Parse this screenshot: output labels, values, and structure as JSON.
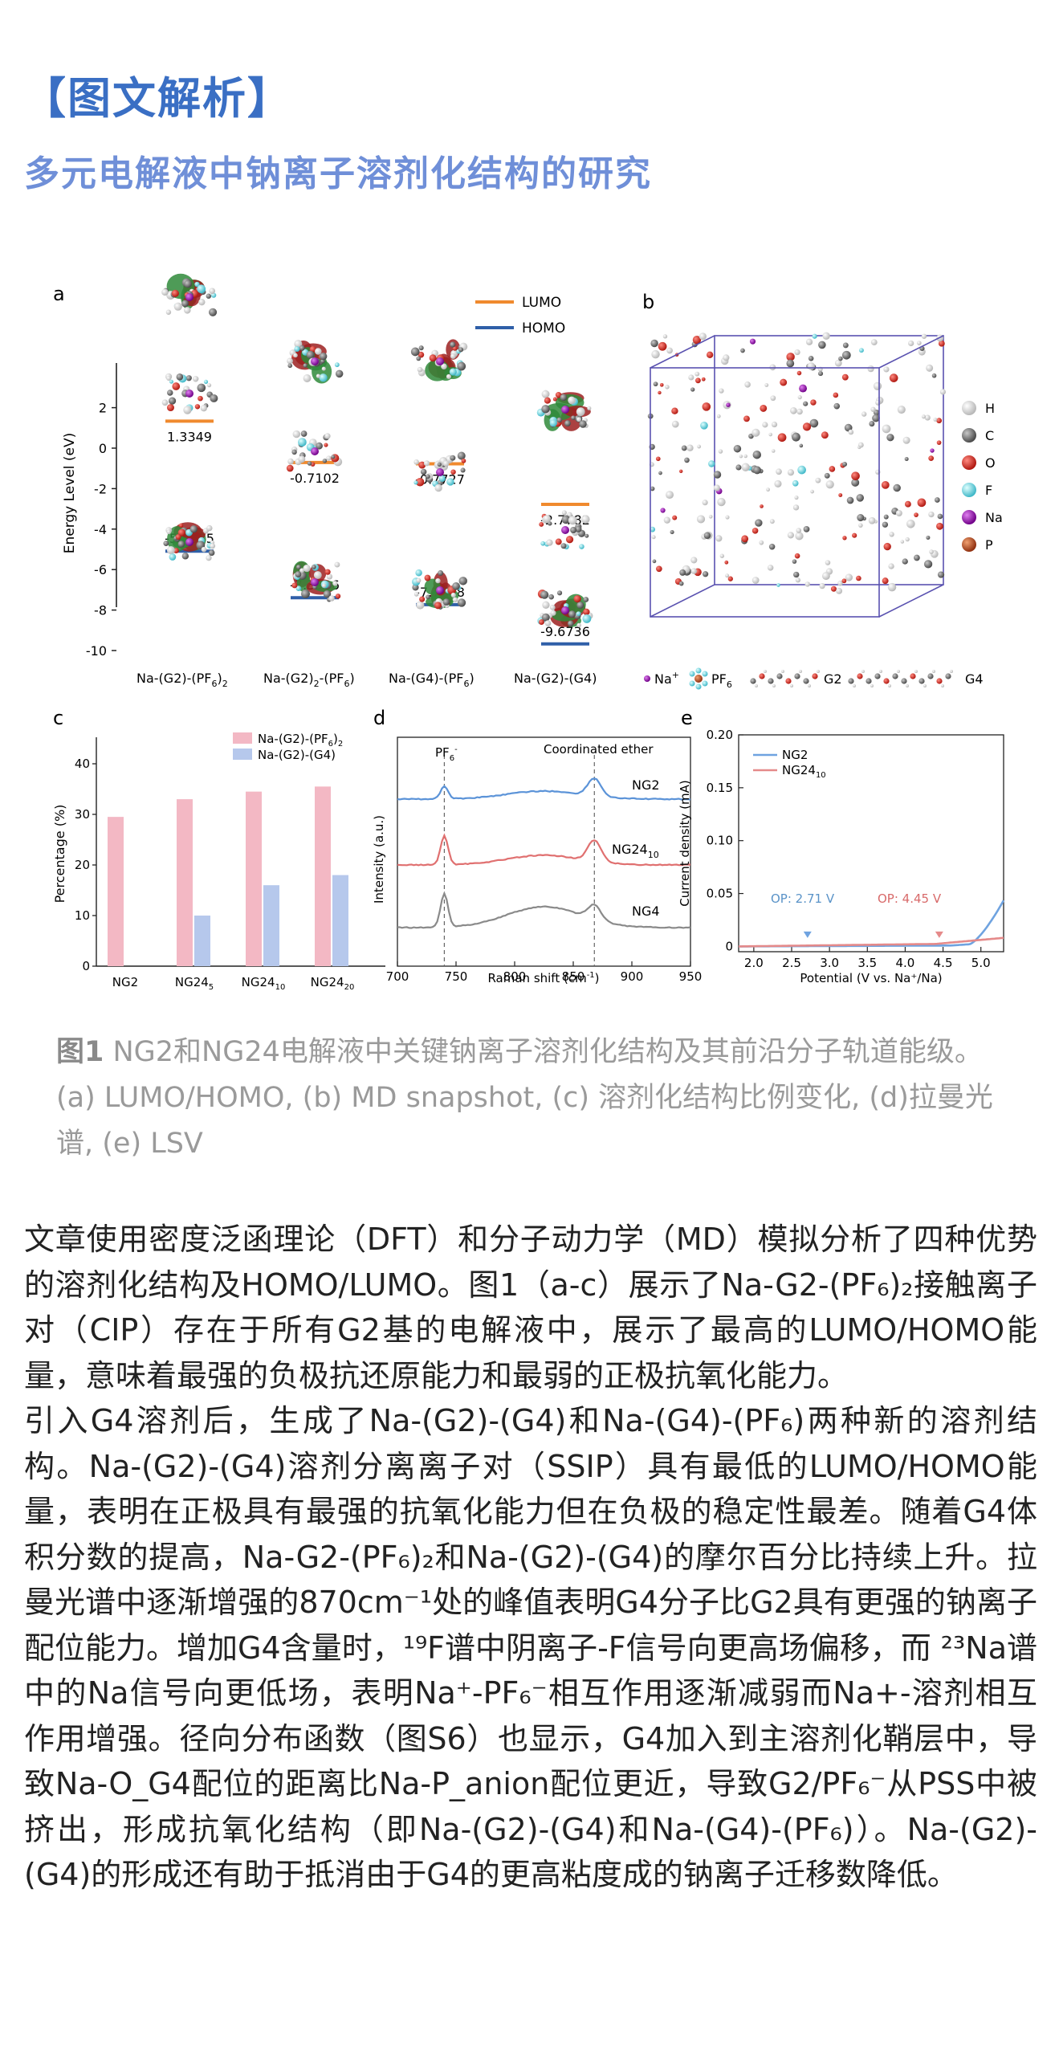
{
  "header": {
    "section_title": "【图文解析】",
    "article_title": "多元电解液中钠离子溶剂化结构的研究"
  },
  "figure": {
    "panel_a": {
      "letter": "a",
      "ylabel": "Energy Level (eV)",
      "yticks": [
        "2",
        "0",
        "-2",
        "-4",
        "-6",
        "-8",
        "-10"
      ],
      "legend": [
        {
          "label": "LUMO",
          "color": "#f08a2e"
        },
        {
          "label": "HOMO",
          "color": "#2f5fa8"
        }
      ],
      "structures": [
        {
          "name": "Na-(G2)-(PF6)2",
          "lumo": 1.3349,
          "homo": -5.0885,
          "lumo_label": "1.3349",
          "homo_label": "-5.0885"
        },
        {
          "name": "Na-(G2)2-(PF6)",
          "lumo": -0.7102,
          "homo": -7.3906,
          "lumo_label": "-0.7102",
          "homo_label": "-7.3906"
        },
        {
          "name": "Na-(G4)-(PF6)",
          "lumo": -0.7727,
          "homo": -7.7308,
          "lumo_label": "-0.7727",
          "homo_label": "-7.7308"
        },
        {
          "name": "Na-(G2)-(G4)",
          "lumo": -2.7782,
          "homo": -9.6736,
          "lumo_label": "-2.7782",
          "homo_label": "-9.6736"
        }
      ],
      "names": {
        "s1_main": "Na-(G2)-(PF",
        "s1_sub": "6",
        "s1_close": ")",
        "s1_sub2": "2",
        "s2_main": "Na-(G2)",
        "s2_sub": "2",
        "s2_rest": "-(PF",
        "s2_sub2": "6",
        "s2_close": ")",
        "s3_main": "Na-(G4)-(PF",
        "s3_sub": "6",
        "s3_close": ")",
        "s4_main": "Na-(G2)-(G4)"
      }
    },
    "panel_b": {
      "letter": "b",
      "atoms": [
        {
          "label": "H",
          "color": "#e8e8e8"
        },
        {
          "label": "C",
          "color": "#7a7a7a"
        },
        {
          "label": "O",
          "color": "#d42a20"
        },
        {
          "label": "F",
          "color": "#78d8e0"
        },
        {
          "label": "Na",
          "color": "#a020b0"
        },
        {
          "label": "P",
          "color": "#c8602a"
        }
      ],
      "molecule_legend": {
        "na": "Na",
        "na_sup": "+",
        "pf": "PF",
        "pf_sub": "6",
        "g2": "G2",
        "g4": "G4"
      }
    },
    "panel_c": {
      "letter": "c",
      "type": "bar",
      "ylabel": "Percentage (%)",
      "yticks": [
        "0",
        "10",
        "20",
        "30",
        "40"
      ],
      "ylim": [
        0,
        45
      ],
      "categories": [
        "NG2",
        "NG24",
        "NG24",
        "NG24"
      ],
      "category_subs": [
        "",
        "5",
        "10",
        "20"
      ],
      "series": [
        {
          "name": "Na-(G2)-(PF6)2",
          "label_main": "Na-(G2)-(PF",
          "label_sub": "6",
          "label_close": ")",
          "label_sub2": "2",
          "color": "#f3b8c4",
          "values": [
            29.5,
            33,
            34.5,
            35.5
          ]
        },
        {
          "name": "Na-(G2)-(G4)",
          "label_main": "Na-(G2)-(G4)",
          "color": "#b6c8ec",
          "values": [
            0,
            10,
            16,
            18
          ]
        }
      ]
    },
    "panel_d": {
      "letter": "d",
      "type": "line",
      "xlabel_main": "Raman shift (cm",
      "xlabel_sup": "-1",
      "xlabel_close": ")",
      "ylabel": "Intensity (a.u.)",
      "xticks": [
        "700",
        "750",
        "800",
        "850",
        "900",
        "950"
      ],
      "xlim": [
        700,
        950
      ],
      "annotations": {
        "pf": "PF",
        "pf_sub": "6",
        "pf_sup": "-",
        "coord": "Coordinated ether"
      },
      "peak_positions": [
        740,
        868
      ],
      "series": [
        {
          "name": "NG2",
          "name_sub": "",
          "color": "#5b93d8"
        },
        {
          "name": "NG24",
          "name_sub": "10",
          "color": "#e07070"
        },
        {
          "name": "NG4",
          "name_sub": "",
          "color": "#8a8a8a"
        }
      ]
    },
    "panel_e": {
      "letter": "e",
      "type": "line",
      "xlabel": "Potential (V vs. Na⁺/Na)",
      "ylabel": "Current density (mA)",
      "xticks": [
        "2.0",
        "2.5",
        "3.0",
        "3.5",
        "4.0",
        "4.5",
        "5.0"
      ],
      "yticks": [
        "0",
        "0.05",
        "0.10",
        "0.15",
        "0.20"
      ],
      "xlim": [
        1.8,
        5.3
      ],
      "ylim": [
        -0.005,
        0.2
      ],
      "series": [
        {
          "name": "NG2",
          "name_sub": "",
          "color": "#6fa3e0",
          "op_label": "OP: 2.71 V",
          "op_value": 2.71
        },
        {
          "name": "NG24",
          "name_sub": "10",
          "color": "#e58a8a",
          "op_label": "OP: 4.45 V",
          "op_value": 4.45
        }
      ]
    }
  },
  "caption": {
    "label": "图1",
    "text": " NG2和NG24电解液中关键钠离子溶剂化结构及其前沿分子轨道能级。(a) LUMO/HOMO, (b) MD snapshot, (c) 溶剂化结构比例变化, (d)拉曼光谱, (e) LSV"
  },
  "body": {
    "p1": "文章使用密度泛函理论（DFT）和分子动力学（MD）模拟分析了四种优势的溶剂化结构及HOMO/LUMO。图1（a-c）展示了Na-G2-(PF₆)₂接触离子对（CIP）存在于所有G2基的电解液中，展示了最高的LUMO/HOMO能量，意味着最强的负极抗还原能力和最弱的正极抗氧化能力。",
    "p2": "引入G4溶剂后，生成了Na-(G2)-(G4)和Na-(G4)-(PF₆)两种新的溶剂结构。Na-(G2)-(G4)溶剂分离离子对（SSIP）具有最低的LUMO/HOMO能量，表明在正极具有最强的抗氧化能力但在负极的稳定性最差。随着G4体积分数的提高，Na-G2-(PF₆)₂和Na-(G2)-(G4)的摩尔百分比持续上升。拉曼光谱中逐渐增强的870cm⁻¹处的峰值表明G4分子比G2具有更强的钠离子配位能力。增加G4含量时，¹⁹F谱中阴离子-F信号向更高场偏移，而 ²³Na谱中的Na信号向更低场，表明Na⁺-PF₆⁻相互作用逐渐减弱而Na+-溶剂相互作用增强。径向分布函数（图S6）也显示，G4加入到主溶剂化鞘层中，导致Na-O_G4配位的距离比Na-P_anion配位更近，导致G2/PF₆⁻从PSS中被挤出，形成抗氧化结构（即Na-(G2)-(G4)和Na-(G4)-(PF₆)）。Na-(G2)-(G4)的形成还有助于抵消由于G4的更高粘度成的钠离子迁移数降低。"
  }
}
